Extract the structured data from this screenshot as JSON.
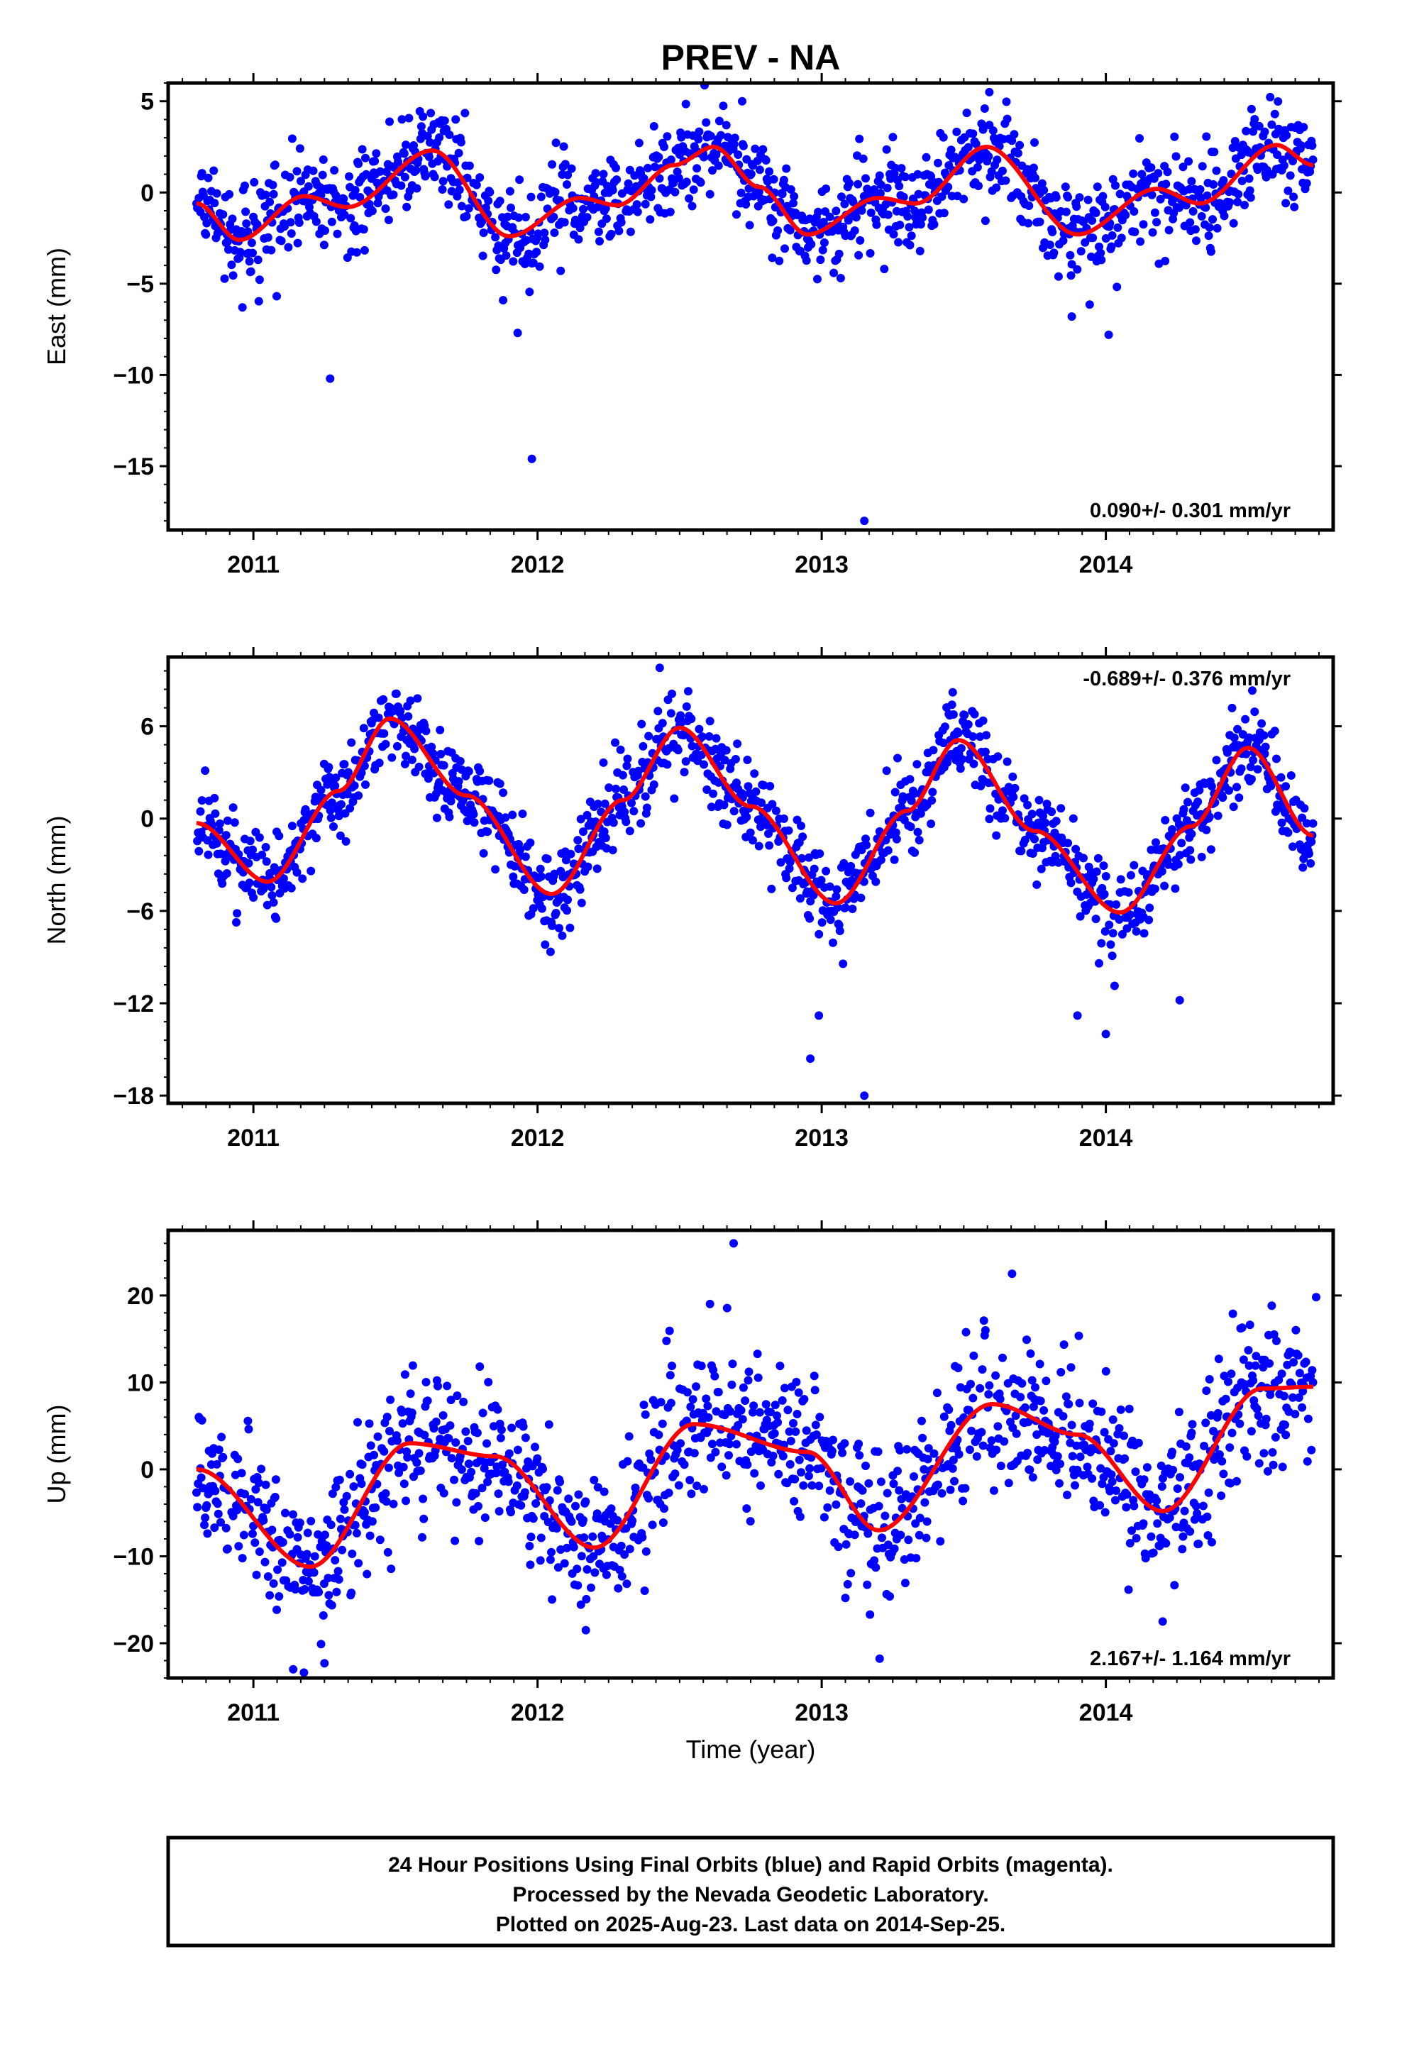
{
  "page": {
    "title": "PREV - NA",
    "xlabel": "Time (year)",
    "footer_lines": [
      "24 Hour Positions Using Final Orbits (blue) and Rapid Orbits (magenta).",
      "Processed by the Nevada Geodetic Laboratory.",
      "Plotted on 2025-Aug-23. Last data on 2014-Sep-25."
    ]
  },
  "colors": {
    "points": "#0000ff",
    "fit": "#ff0000",
    "frame": "#000000"
  },
  "chart_data": [
    {
      "type": "scatter",
      "ylabel": "East (mm)",
      "rate_text": "0.090+/- 0.301 mm/yr",
      "rate_position": "bottom-right",
      "xlim": [
        2010.7,
        2014.8
      ],
      "ylim": [
        -18.5,
        6
      ],
      "xticks": [
        2011,
        2012,
        2013,
        2014
      ],
      "yticks": [
        5,
        0,
        -5,
        -10,
        -15
      ],
      "x_range": [
        2010.8,
        2014.73
      ],
      "fit_curve": {
        "x": [
          2010.8,
          2010.95,
          2011.18,
          2011.33,
          2011.63,
          2011.9,
          2012.15,
          2012.28,
          2012.48,
          2012.62,
          2012.78,
          2012.95,
          2013.2,
          2013.33,
          2013.58,
          2013.9,
          2014.18,
          2014.33,
          2014.6,
          2014.73
        ],
        "y": [
          -0.6,
          -2.6,
          -0.2,
          -0.8,
          2.3,
          -2.4,
          -0.3,
          -0.7,
          1.5,
          2.5,
          0.3,
          -2.3,
          -0.3,
          -0.6,
          2.5,
          -2.3,
          0.2,
          -0.6,
          2.6,
          1.5
        ]
      },
      "outliers": [
        {
          "x": 2011.27,
          "y": -10.2
        },
        {
          "x": 2011.98,
          "y": -14.6
        },
        {
          "x": 2013.15,
          "y": -18.0
        },
        {
          "x": 2011.93,
          "y": -7.7
        },
        {
          "x": 2014.01,
          "y": -7.8
        },
        {
          "x": 2013.88,
          "y": -6.8
        },
        {
          "x": 2013.59,
          "y": 5.5
        },
        {
          "x": 2012.72,
          "y": 5.0
        }
      ],
      "scatter_noise_mm": 1.3
    },
    {
      "type": "scatter",
      "ylabel": "North (mm)",
      "rate_text": "-0.689+/- 0.376 mm/yr",
      "rate_position": "top-right",
      "xlim": [
        2010.7,
        2014.8
      ],
      "ylim": [
        -18.5,
        10.5
      ],
      "xticks": [
        2011,
        2012,
        2013,
        2014
      ],
      "yticks": [
        6,
        0,
        -6,
        -12,
        -18
      ],
      "x_range": [
        2010.8,
        2014.73
      ],
      "fit_curve": {
        "x": [
          2010.8,
          2011.05,
          2011.3,
          2011.48,
          2011.75,
          2012.05,
          2012.3,
          2012.5,
          2012.75,
          2013.05,
          2013.3,
          2013.48,
          2013.75,
          2014.05,
          2014.3,
          2014.5,
          2014.73
        ],
        "y": [
          -0.3,
          -4.1,
          1.8,
          6.5,
          1.5,
          -4.9,
          1.2,
          5.9,
          0.8,
          -5.5,
          0.5,
          5.1,
          -0.8,
          -6.1,
          -0.5,
          4.6,
          -1.1
        ]
      },
      "outliers": [
        {
          "x": 2012.43,
          "y": 9.8
        },
        {
          "x": 2012.96,
          "y": -15.6
        },
        {
          "x": 2013.15,
          "y": -18.0
        },
        {
          "x": 2012.99,
          "y": -12.8
        },
        {
          "x": 2013.9,
          "y": -12.8
        },
        {
          "x": 2014.0,
          "y": -14.0
        },
        {
          "x": 2014.26,
          "y": -11.8
        },
        {
          "x": 2011.08,
          "y": -6.5
        }
      ],
      "scatter_noise_mm": 1.4
    },
    {
      "type": "scatter",
      "ylabel": "Up (mm)",
      "rate_text": "2.167+/- 1.164 mm/yr",
      "rate_position": "bottom-right",
      "xlim": [
        2010.7,
        2014.8
      ],
      "ylim": [
        -24,
        27.5
      ],
      "xticks": [
        2011,
        2012,
        2013,
        2014
      ],
      "yticks": [
        20,
        10,
        0,
        -10,
        -20
      ],
      "x_range": [
        2010.8,
        2014.73
      ],
      "fit_curve": {
        "x": [
          2010.8,
          2011.2,
          2011.55,
          2011.85,
          2012.2,
          2012.55,
          2012.95,
          2013.2,
          2013.6,
          2013.9,
          2014.2,
          2014.55,
          2014.73
        ],
        "y": [
          0,
          -11.2,
          3.0,
          1.5,
          -9.0,
          5.2,
          2.0,
          -7.0,
          7.5,
          4.0,
          -4.8,
          9.3,
          9.5
        ]
      },
      "outliers": [
        {
          "x": 2012.69,
          "y": 26.0
        },
        {
          "x": 2013.67,
          "y": 22.5
        },
        {
          "x": 2014.74,
          "y": 19.8
        },
        {
          "x": 2011.14,
          "y": -23.0
        },
        {
          "x": 2011.25,
          "y": -22.3
        },
        {
          "x": 2012.17,
          "y": -18.5
        },
        {
          "x": 2013.17,
          "y": -16.7
        },
        {
          "x": 2014.2,
          "y": -17.5
        }
      ],
      "scatter_noise_mm": 4.3
    }
  ]
}
